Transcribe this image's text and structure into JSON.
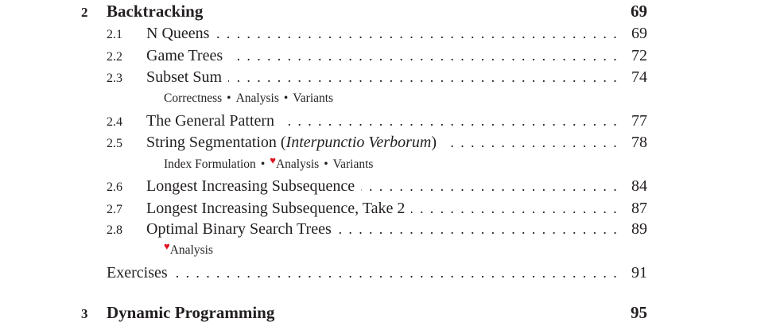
{
  "accent_color": "#e0141e",
  "rows": [
    {
      "type": "chapter",
      "number": "2",
      "title": "Backtracking",
      "page": "69"
    },
    {
      "type": "section",
      "number": "2.1",
      "title": "N Queens",
      "page": "69"
    },
    {
      "type": "section",
      "number": "2.2",
      "title": "Game Trees",
      "page": "72"
    },
    {
      "type": "section",
      "number": "2.3",
      "title": "Subset Sum",
      "page": "74"
    },
    {
      "type": "sub",
      "items": [
        {
          "label": "Correctness"
        },
        {
          "label": "Analysis"
        },
        {
          "label": "Variants"
        }
      ]
    },
    {
      "type": "section",
      "number": "2.4",
      "title": "The General Pattern",
      "page": "77"
    },
    {
      "type": "section",
      "number": "2.5",
      "title": "String Segmentation (",
      "title_italic": "Interpunctio Verborum",
      "title_after": ")",
      "page": "78"
    },
    {
      "type": "sub",
      "items": [
        {
          "label": "Index Formulation"
        },
        {
          "label": "Analysis",
          "icon": "heart-icon"
        },
        {
          "label": "Variants"
        }
      ]
    },
    {
      "type": "section",
      "number": "2.6",
      "title": "Longest Increasing Subsequence",
      "page": "84"
    },
    {
      "type": "section",
      "number": "2.7",
      "title": "Longest Increasing Subsequence, Take 2",
      "page": "87"
    },
    {
      "type": "section",
      "number": "2.8",
      "title": "Optimal Binary Search Trees",
      "page": "89"
    },
    {
      "type": "sub",
      "items": [
        {
          "label": "Analysis",
          "icon": "heart-icon"
        }
      ]
    },
    {
      "type": "exercises",
      "title": "Exercises",
      "page": "91"
    },
    {
      "type": "chapter",
      "number": "3",
      "title": "Dynamic Programming",
      "page": "95"
    }
  ]
}
